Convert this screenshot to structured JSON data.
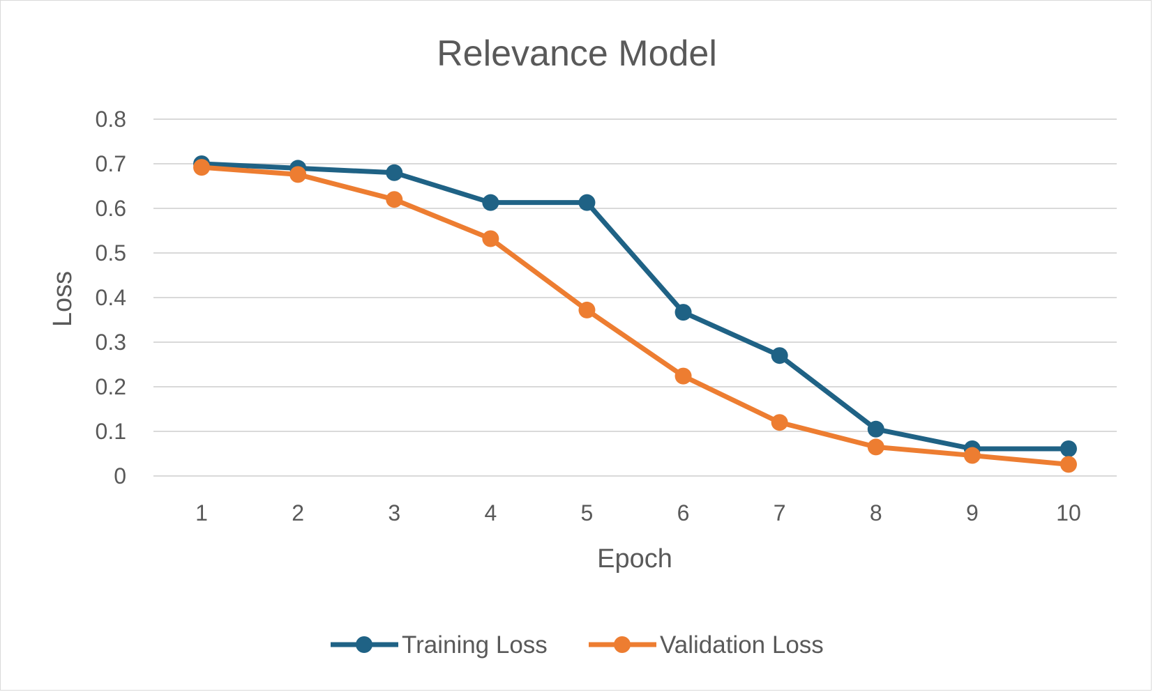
{
  "chart_data": {
    "type": "line",
    "title": "Relevance Model",
    "xlabel": "Epoch",
    "ylabel": "Loss",
    "categories": [
      "1",
      "2",
      "3",
      "4",
      "5",
      "6",
      "7",
      "8",
      "9",
      "10"
    ],
    "ylim": [
      0,
      0.8
    ],
    "yticks": [
      "0",
      "0.1",
      "0.2",
      "0.3",
      "0.4",
      "0.5",
      "0.6",
      "0.7",
      "0.8"
    ],
    "grid": true,
    "legend_position": "bottom",
    "series": [
      {
        "name": "Training Loss",
        "color": "#1f6285",
        "values": [
          0.7,
          0.69,
          0.68,
          0.613,
          0.613,
          0.367,
          0.27,
          0.105,
          0.061,
          0.061
        ]
      },
      {
        "name": "Validation Loss",
        "color": "#ed7d31",
        "values": [
          0.692,
          0.676,
          0.62,
          0.532,
          0.372,
          0.224,
          0.12,
          0.065,
          0.046,
          0.026
        ]
      }
    ]
  }
}
